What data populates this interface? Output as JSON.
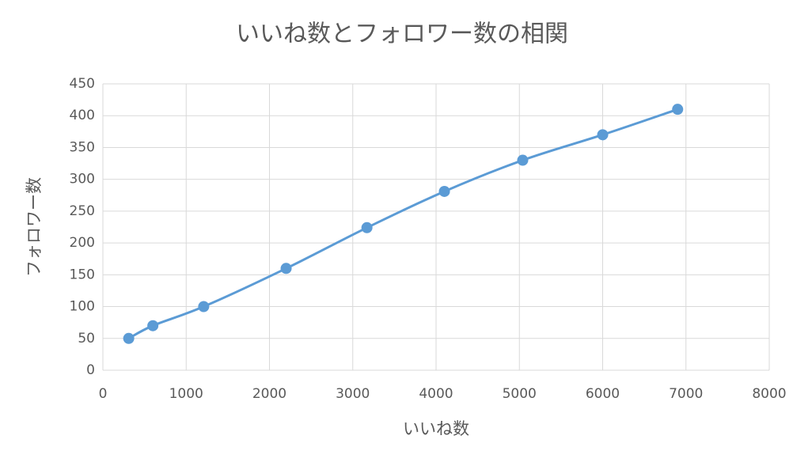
{
  "chart_data": {
    "type": "scatter",
    "smooth": true,
    "title": "いいね数とフォロワー数の相関",
    "x_label": "いいね数",
    "y_label": "フォロワー数",
    "x": [
      310,
      600,
      1210,
      2200,
      3170,
      4100,
      5040,
      6000,
      6900
    ],
    "series": [
      {
        "color": "#5b9bd5",
        "values": [
          50,
          70,
          100,
          160,
          224,
          281,
          330,
          370,
          410
        ]
      }
    ],
    "xlim": [
      0,
      8000
    ],
    "xticks": [
      0,
      1000,
      2000,
      3000,
      4000,
      5000,
      6000,
      7000,
      8000
    ],
    "ylim": [
      0,
      450
    ],
    "yticks": [
      0,
      50,
      100,
      150,
      200,
      250,
      300,
      350,
      400,
      450
    ],
    "grid": true
  }
}
